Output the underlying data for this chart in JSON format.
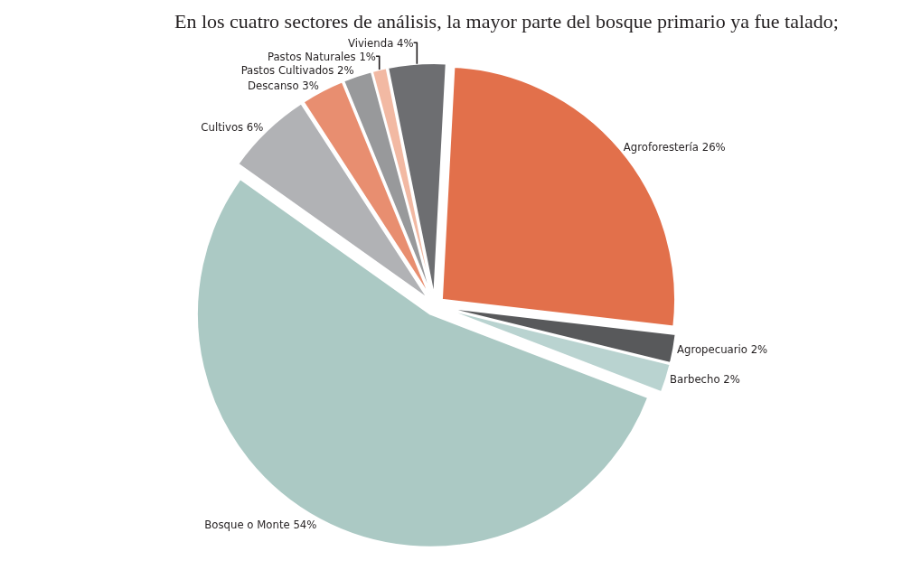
{
  "chart_data": {
    "type": "pie",
    "title": "En los cuatro sectores de análisis, la mayor parte del bosque primario ya fue talado;",
    "categories": [
      "Agroforestería",
      "Agropecuario",
      "Barbecho",
      "Bosque o Monte",
      "Cultivos",
      "Descanso",
      "Pastos Cultivados",
      "Pastos Naturales",
      "Vivienda"
    ],
    "values": [
      26,
      2,
      2,
      54,
      6,
      3,
      2,
      1,
      4
    ],
    "value_labels": [
      "26%",
      "2%",
      "2%",
      "54%",
      "6%",
      "3%",
      "2%",
      "1%",
      "4%"
    ],
    "colors": [
      "#e2704b",
      "#58595b",
      "#b9d3d0",
      "#abc9c4",
      "#b1b2b5",
      "#e88e70",
      "#98999b",
      "#f2b9a3",
      "#6d6e71"
    ],
    "legend": false
  }
}
